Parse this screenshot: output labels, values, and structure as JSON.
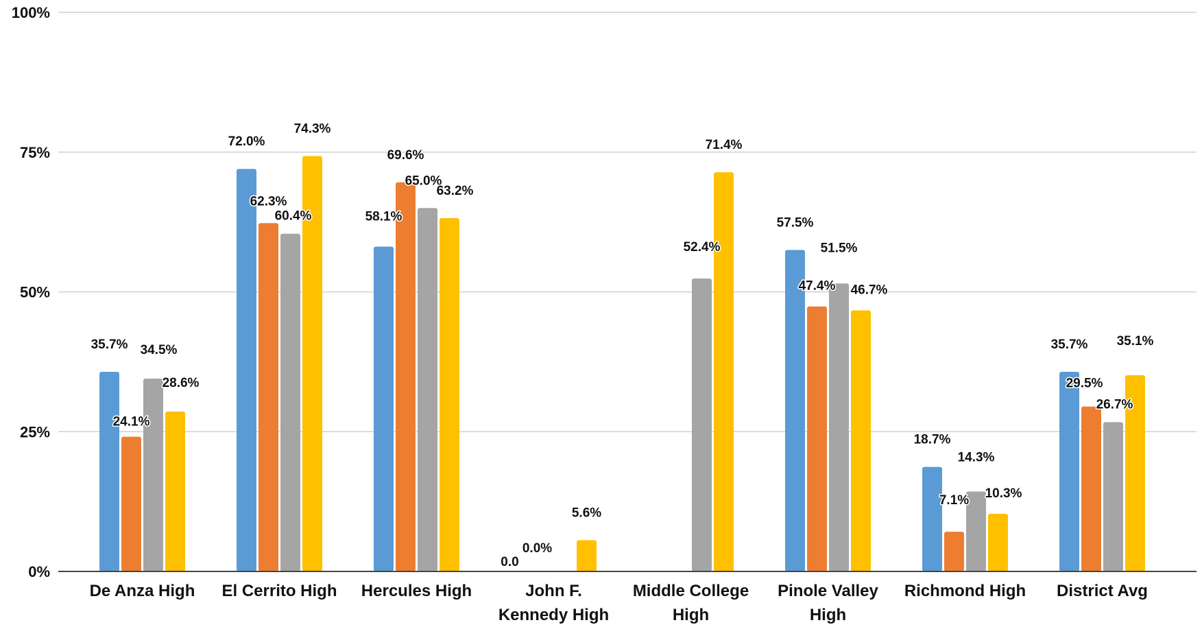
{
  "chart_data": {
    "type": "bar",
    "categories": [
      [
        "De Anza High"
      ],
      [
        "El Cerrito High"
      ],
      [
        "Hercules High"
      ],
      [
        "John F.",
        "Kennedy High"
      ],
      [
        "Middle College",
        "High"
      ],
      [
        "Pinole Valley",
        "High"
      ],
      [
        "Richmond High"
      ],
      [
        "District Avg"
      ]
    ],
    "series": [
      {
        "values": [
          35.7,
          72.0,
          58.1,
          0.0,
          null,
          57.5,
          18.7,
          35.7
        ],
        "labels": [
          "35.7%",
          "72.0%",
          "58.1%",
          "0.0",
          "",
          "57.5%",
          "18.7%",
          "35.7%"
        ]
      },
      {
        "values": [
          24.1,
          62.3,
          69.6,
          0.0,
          null,
          47.4,
          7.1,
          29.5
        ],
        "labels": [
          "24.1%",
          "62.3%",
          "69.6%",
          "0.0%",
          "",
          "47.4%",
          "7.1%",
          "29.5%"
        ]
      },
      {
        "values": [
          34.5,
          60.4,
          65.0,
          null,
          52.4,
          51.5,
          14.3,
          26.7
        ],
        "labels": [
          "34.5%",
          "60.4%",
          "65.0%",
          "",
          "52.4%",
          "51.5%",
          "14.3%",
          "26.7%"
        ]
      },
      {
        "values": [
          28.6,
          74.3,
          63.2,
          5.6,
          71.4,
          46.7,
          10.3,
          35.1
        ],
        "labels": [
          "28.6%",
          "74.3%",
          "63.2%",
          "5.6%",
          "71.4%",
          "46.7%",
          "10.3%",
          "35.1%"
        ]
      }
    ],
    "colors": [
      "#5B9BD5",
      "#ED7D31",
      "#A5A5A5",
      "#FFC000"
    ],
    "ylim": [
      0,
      100
    ],
    "yticks": [
      "0%",
      "25%",
      "50%",
      "75%",
      "100%"
    ],
    "grid": true,
    "legend": "none"
  }
}
